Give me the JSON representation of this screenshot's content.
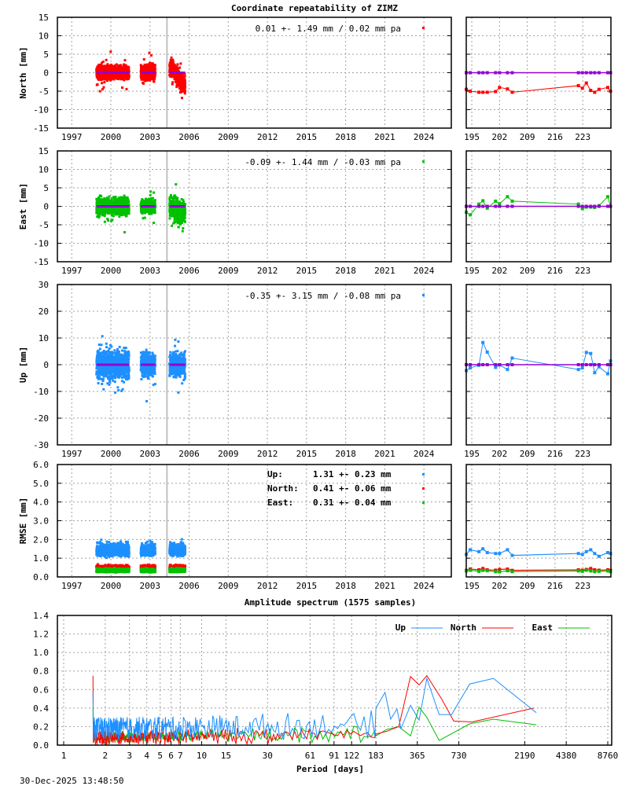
{
  "title": "Coordinate repeatability of ZIMZ",
  "spectrum_title": "Amplitude spectrum (1575 samples)",
  "timestamp": "30-Dec-2025 13:48:50",
  "colors": {
    "north": "#ff0000",
    "east": "#00c000",
    "up": "#1e90ff",
    "mean": "#9400d3",
    "event_line": "#c0c0c0"
  },
  "chart_data": [
    {
      "type": "scatter",
      "id": "north",
      "ylabel": "North [mm]",
      "ylim": [
        -15,
        15
      ],
      "yticks": [
        "15",
        "10",
        "5",
        "0",
        "-5",
        "-10",
        "-15"
      ],
      "xticks": [
        "1997",
        "2000",
        "2003",
        "2006",
        "2009",
        "2012",
        "2015",
        "2018",
        "2021",
        "2024"
      ],
      "legend": "0.01 +- 1.49 mm /  0.02 mm pa",
      "segments": [
        {
          "from": 1998.9,
          "to": 2001.4,
          "spread": 1.5,
          "trend": [
            0,
            0
          ]
        },
        {
          "from": 2002.3,
          "to": 2003.4,
          "spread": 1.6,
          "trend": [
            0,
            0.5
          ]
        },
        {
          "from": 2004.5,
          "to": 2005.7,
          "spread": 2.0,
          "trend": [
            2,
            -4
          ]
        }
      ],
      "event_year": 2004.3,
      "recent": {
        "xticks": [
          "195",
          "202",
          "209",
          "216",
          "223"
        ],
        "days": [
          193.6,
          194.6,
          196.8,
          197.8,
          198.9,
          201,
          202,
          204,
          205.2,
          221.9,
          222.9,
          223.9,
          225,
          226,
          227.1,
          229.3,
          230
        ],
        "values": [
          -4.5,
          -5,
          -5.3,
          -5.3,
          -5.3,
          -5.1,
          -4,
          -4.4,
          -5.3,
          -3.5,
          -4.2,
          -2.8,
          -4.8,
          -5.3,
          -4.5,
          -4,
          -5
        ]
      }
    },
    {
      "type": "scatter",
      "id": "east",
      "ylabel": "East [mm]",
      "ylim": [
        -15,
        15
      ],
      "yticks": [
        "15",
        "10",
        "5",
        "0",
        "-5",
        "-10",
        "-15"
      ],
      "xticks": [
        "1997",
        "2000",
        "2003",
        "2006",
        "2009",
        "2012",
        "2015",
        "2018",
        "2021",
        "2024"
      ],
      "legend": "-0.09 +- 1.44 mm / -0.03 mm pa",
      "segments": [
        {
          "from": 1998.9,
          "to": 2001.4,
          "spread": 1.8,
          "trend": [
            0,
            0
          ]
        },
        {
          "from": 2002.3,
          "to": 2003.4,
          "spread": 1.5,
          "trend": [
            0,
            0
          ]
        },
        {
          "from": 2004.5,
          "to": 2005.7,
          "spread": 2.5,
          "trend": [
            0,
            -2
          ]
        }
      ],
      "event_year": 2004.3,
      "recent": {
        "xticks": [
          "195",
          "202",
          "209",
          "216",
          "223"
        ],
        "days": [
          193.6,
          194.6,
          196.8,
          197.8,
          198.9,
          201,
          202,
          204,
          205.2,
          221.9,
          222.9,
          223.9,
          225,
          226,
          227.1,
          229.3,
          230
        ],
        "values": [
          -1.6,
          -2.3,
          0.6,
          1.5,
          -0.5,
          1.4,
          0.7,
          2.6,
          1.4,
          0.6,
          -0.6,
          -0.2,
          -0.2,
          -0.3,
          0.2,
          2.6,
          0
        ]
      }
    },
    {
      "type": "scatter",
      "id": "up",
      "ylabel": "Up [mm]",
      "ylim": [
        -30,
        30
      ],
      "yticks": [
        "30",
        "20",
        "10",
        "0",
        "-10",
        "-20",
        "-30"
      ],
      "xticks": [
        "1997",
        "2000",
        "2003",
        "2006",
        "2009",
        "2012",
        "2015",
        "2018",
        "2021",
        "2024"
      ],
      "legend": "-0.35 +- 3.15 mm / -0.08 mm pa",
      "segments": [
        {
          "from": 1998.9,
          "to": 2001.4,
          "spread": 4.5,
          "trend": [
            0,
            0
          ]
        },
        {
          "from": 2002.3,
          "to": 2003.4,
          "spread": 3.5,
          "trend": [
            0,
            0
          ]
        },
        {
          "from": 2004.5,
          "to": 2005.7,
          "spread": 3.5,
          "trend": [
            0,
            0
          ]
        }
      ],
      "event_year": 2004.3,
      "recent": {
        "xticks": [
          "195",
          "202",
          "209",
          "216",
          "223"
        ],
        "days": [
          193.6,
          194.6,
          196.8,
          197.8,
          198.9,
          201,
          202,
          204,
          205.2,
          221.9,
          222.9,
          223.9,
          225,
          226,
          227.1,
          229.3,
          230
        ],
        "values": [
          -2.2,
          -1.2,
          -0.2,
          8.3,
          4.7,
          -1,
          -0.1,
          -1.8,
          2.5,
          -1.8,
          -1.2,
          4.6,
          4.2,
          -3,
          -0.8,
          -3.4,
          1.4
        ]
      }
    },
    {
      "type": "scatter",
      "id": "rmse",
      "ylabel": "RMSE [mm]",
      "ylim": [
        0,
        6
      ],
      "yticks": [
        "6.0",
        "5.0",
        "4.0",
        "3.0",
        "2.0",
        "1.0",
        "0.0"
      ],
      "xticks": [
        "1997",
        "2000",
        "2003",
        "2006",
        "2009",
        "2012",
        "2015",
        "2018",
        "2021",
        "2024"
      ],
      "legend_rows": [
        {
          "label": "Up:",
          "value": "1.31 +- 0.23 mm",
          "color": "#1e90ff"
        },
        {
          "label": "North:",
          "value": "0.41 +- 0.06 mm",
          "color": "#ff0000"
        },
        {
          "label": "East:",
          "value": "0.31 +- 0.04 mm",
          "color": "#00c000"
        }
      ],
      "event_year": 2004.3,
      "segments": [
        {
          "from": 1998.9,
          "to": 2001.4
        },
        {
          "from": 2002.3,
          "to": 2003.4
        },
        {
          "from": 2004.5,
          "to": 2005.7
        }
      ],
      "recent": {
        "xticks": [
          "195",
          "202",
          "209",
          "216",
          "223"
        ],
        "days": [
          193.6,
          194.6,
          196.8,
          197.8,
          198.9,
          201,
          202,
          204,
          205.2,
          221.9,
          222.9,
          223.9,
          225,
          226,
          227.1,
          229.3,
          230
        ],
        "up": [
          1.2,
          1.45,
          1.35,
          1.5,
          1.3,
          1.25,
          1.25,
          1.45,
          1.15,
          1.25,
          1.2,
          1.35,
          1.45,
          1.25,
          1.1,
          1.3,
          1.25
        ],
        "north": [
          0.35,
          0.42,
          0.38,
          0.45,
          0.38,
          0.36,
          0.4,
          0.42,
          0.35,
          0.38,
          0.36,
          0.4,
          0.45,
          0.38,
          0.36,
          0.38,
          0.35
        ],
        "east": [
          0.32,
          0.36,
          0.3,
          0.35,
          0.33,
          0.28,
          0.27,
          0.33,
          0.28,
          0.32,
          0.3,
          0.36,
          0.32,
          0.28,
          0.3,
          0.32,
          0.28
        ]
      }
    },
    {
      "type": "line",
      "id": "spectrum",
      "xlabel": "Period [days]",
      "ylim": [
        0,
        1.4
      ],
      "xscale": "log",
      "xlim": [
        1,
        8760
      ],
      "yticks": [
        "1.4",
        "1.2",
        "1.0",
        "0.8",
        "0.6",
        "0.4",
        "0.2",
        "0.0"
      ],
      "xticks": [
        "1",
        "2",
        "3",
        "4",
        "5",
        "6",
        "7",
        "10",
        "15",
        "30",
        "61",
        "91",
        "122",
        "183",
        "365",
        "730",
        "2190",
        "4380",
        "8760"
      ],
      "legend": "top-right",
      "series": [
        {
          "name": "Up",
          "color": "#1e90ff",
          "periods": [
            183,
            213,
            234,
            260,
            278,
            326,
            376,
            428,
            526,
            647,
            875,
            1300,
            2660
          ],
          "values": [
            0.4,
            0.57,
            0.28,
            0.39,
            0.18,
            0.43,
            0.27,
            0.72,
            0.33,
            0.33,
            0.66,
            0.72,
            0.35
          ]
        },
        {
          "name": "North",
          "color": "#ff0000",
          "periods": [
            183,
            220,
            268,
            326,
            376,
            428,
            547,
            670,
            911,
            2550
          ],
          "values": [
            0.12,
            0.15,
            0.2,
            0.74,
            0.65,
            0.75,
            0.5,
            0.26,
            0.25,
            0.4
          ]
        },
        {
          "name": "East",
          "color": "#00c000",
          "periods": [
            183,
            220,
            268,
            326,
            376,
            428,
            526,
            875,
            1300,
            2660
          ],
          "values": [
            0.1,
            0.17,
            0.2,
            0.1,
            0.41,
            0.3,
            0.05,
            0.23,
            0.28,
            0.22
          ]
        }
      ]
    }
  ]
}
